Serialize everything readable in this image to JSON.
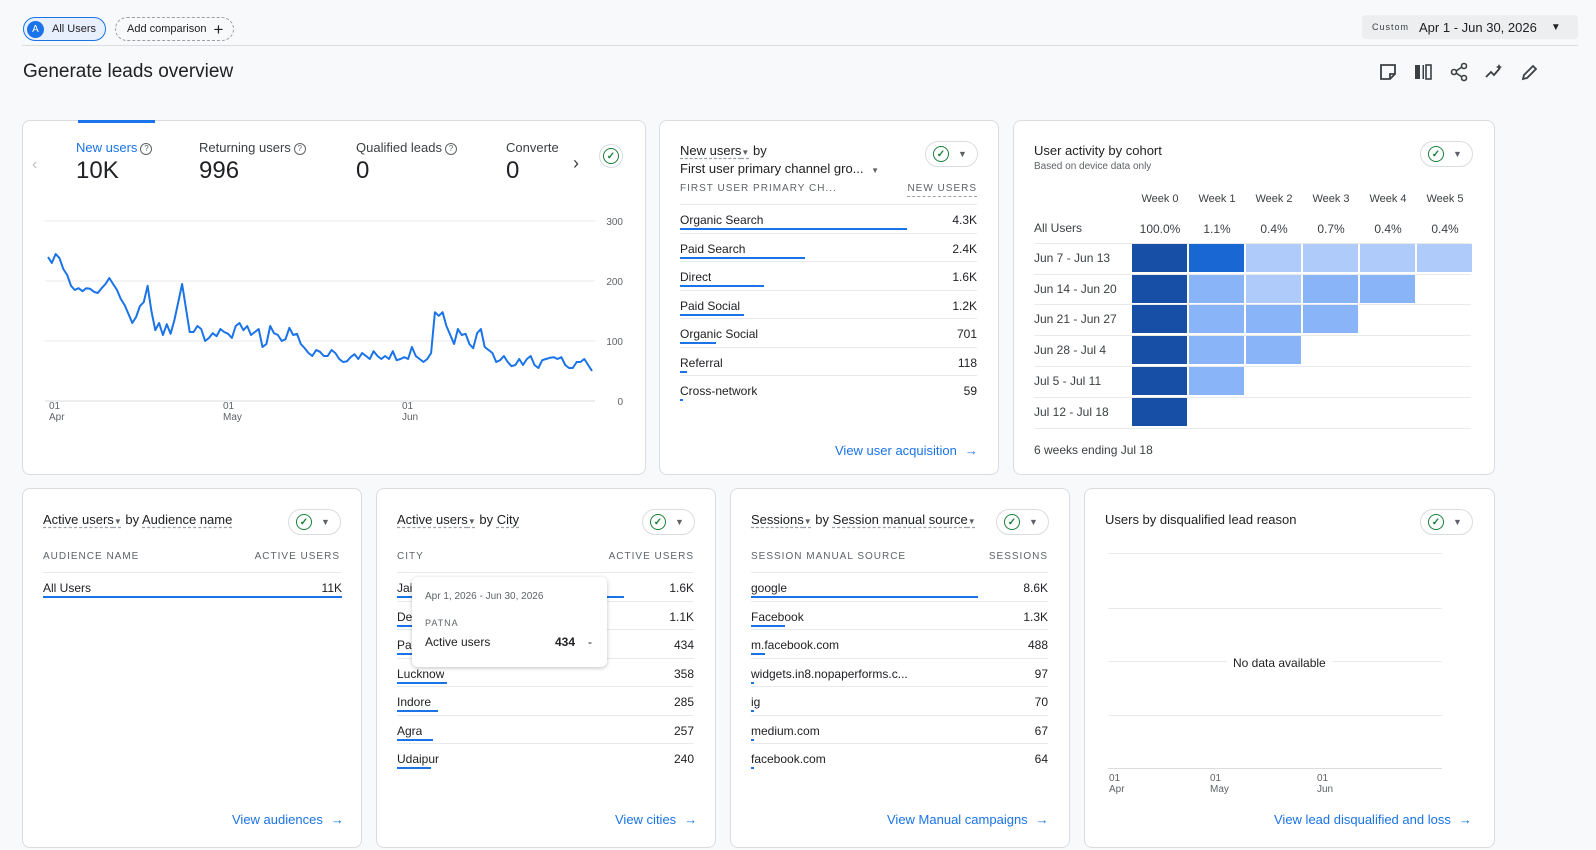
{
  "topbar": {
    "chip_users_avatar": "A",
    "chip_users_label": "All Users",
    "add_comparison_label": "Add comparison",
    "date_custom_label": "Custom",
    "date_range": "Apr 1 - Jun 30, 2026"
  },
  "page_title": "Generate leads overview",
  "toolbar_icons": [
    "customize-report-icon",
    "compare-icon",
    "share-icon",
    "insights-icon",
    "edit-icon"
  ],
  "kpis": [
    {
      "label": "New users",
      "value": "10K",
      "active": true
    },
    {
      "label": "Returning users",
      "value": "996",
      "active": false
    },
    {
      "label": "Qualified leads",
      "value": "0",
      "active": false
    },
    {
      "label": "Converte",
      "value": "0",
      "active": false
    }
  ],
  "line_chart": {
    "chart_data": {
      "type": "line",
      "x_labels": [
        [
          "01",
          "Apr"
        ],
        [
          "01",
          "May"
        ],
        [
          "01",
          "Jun"
        ]
      ],
      "y_ticks": [
        "300",
        "200",
        "100",
        "0"
      ],
      "ylim": [
        0,
        300
      ],
      "series": [
        {
          "values": [
            240,
            230,
            245,
            238,
            220,
            210,
            192,
            185,
            188,
            183,
            188,
            187,
            182,
            180,
            188,
            195,
            205,
            195,
            185,
            170,
            160,
            145,
            130,
            140,
            158,
            165,
            192,
            150,
            118,
            130,
            110,
            128,
            112,
            135,
            165,
            195,
            155,
            115,
            115,
            125,
            120,
            100,
            105,
            113,
            108,
            120,
            115,
            112,
            105,
            125,
            130,
            118,
            125,
            110,
            115,
            120,
            90,
            95,
            125,
            113,
            110,
            100,
            103,
            122,
            110,
            112,
            95,
            88,
            80,
            75,
            85,
            82,
            75,
            75,
            85,
            80,
            70,
            65,
            66,
            73,
            78,
            70,
            80,
            75,
            70,
            83,
            75,
            70,
            75,
            70,
            83,
            68,
            70,
            73,
            70,
            90,
            75,
            70,
            65,
            70,
            80,
            148,
            142,
            148,
            125,
            110,
            95,
            120,
            110,
            112,
            95,
            88,
            113,
            120,
            90,
            85,
            80,
            65,
            68,
            75,
            65,
            58,
            60,
            70,
            60,
            70,
            75,
            60,
            55,
            68,
            70,
            72,
            73,
            70,
            73,
            60,
            55,
            55,
            65,
            65,
            70,
            60,
            50
          ]
        }
      ],
      "grid": true,
      "legend": "none"
    }
  },
  "acquisition": {
    "title_metric": "New users",
    "title_by": "by",
    "title_dim": "First user primary channel gro...",
    "col_dim": "FIRST USER PRIMARY CH...",
    "col_metric": "NEW USERS",
    "rows": [
      {
        "name": "Organic Search",
        "value": "4.3K",
        "frac": 1.0
      },
      {
        "name": "Paid Search",
        "value": "2.4K",
        "frac": 0.55
      },
      {
        "name": "Direct",
        "value": "1.6K",
        "frac": 0.37
      },
      {
        "name": "Paid Social",
        "value": "1.2K",
        "frac": 0.28
      },
      {
        "name": "Organic Social",
        "value": "701",
        "frac": 0.16
      },
      {
        "name": "Referral",
        "value": "118",
        "frac": 0.03
      },
      {
        "name": "Cross-network",
        "value": "59",
        "frac": 0.015
      }
    ],
    "link": "View user acquisition"
  },
  "cohort": {
    "title": "User activity by cohort",
    "subtitle": "Based on device data only",
    "weeks": [
      "Week 0",
      "Week 1",
      "Week 2",
      "Week 3",
      "Week 4",
      "Week 5"
    ],
    "all_users_label": "All Users",
    "all_users_pcts": [
      "100.0%",
      "1.1%",
      "0.4%",
      "0.7%",
      "0.4%",
      "0.4%"
    ],
    "rows": [
      {
        "label": "Jun 7 - Jun 13",
        "levels": [
          5,
          4,
          1,
          1,
          1,
          1
        ]
      },
      {
        "label": "Jun 14 - Jun 20",
        "levels": [
          5,
          2,
          1,
          2,
          2
        ]
      },
      {
        "label": "Jun 21 - Jun 27",
        "levels": [
          5,
          2,
          2,
          2
        ]
      },
      {
        "label": "Jun 28 - Jul 4",
        "levels": [
          5,
          2,
          2
        ]
      },
      {
        "label": "Jul 5 - Jul 11",
        "levels": [
          5,
          2
        ]
      },
      {
        "label": "Jul 12 - Jul 18",
        "levels": [
          5
        ]
      }
    ],
    "footer": "6 weeks ending Jul 18",
    "colors": {
      "5": "#174ea6",
      "4": "#1967d2",
      "2": "#8ab4f8",
      "1": "#aecbfa"
    }
  },
  "audience": {
    "title_metric": "Active users",
    "title_by": "by",
    "title_dim": "Audience name",
    "col_dim": "AUDIENCE NAME",
    "col_metric": "ACTIVE USERS",
    "rows": [
      {
        "name": "All Users",
        "value": "11K",
        "frac": 1.0
      }
    ],
    "link": "View audiences"
  },
  "city": {
    "title_metric": "Active users",
    "title_by": "by",
    "title_dim": "City",
    "col_dim": "CITY",
    "col_metric": "ACTIVE USERS",
    "rows": [
      {
        "name": "Jaipur",
        "value": "1.6K",
        "frac": 1.0
      },
      {
        "name": "Delhi",
        "value": "1.1K",
        "frac": 0.69
      },
      {
        "name": "Patna",
        "value": "434",
        "frac": 0.27
      },
      {
        "name": "Lucknow",
        "value": "358",
        "frac": 0.22
      },
      {
        "name": "Indore",
        "value": "285",
        "frac": 0.18
      },
      {
        "name": "Agra",
        "value": "257",
        "frac": 0.16
      },
      {
        "name": "Udaipur",
        "value": "240",
        "frac": 0.15
      }
    ],
    "link": "View cities",
    "tooltip": {
      "date": "Apr 1, 2026 - Jun 30, 2026",
      "city": "PATNA",
      "metric": "Active users",
      "value": "434",
      "trend": "-"
    }
  },
  "sessions": {
    "title_metric": "Sessions",
    "title_by": "by",
    "title_dim": "Session manual source",
    "col_dim": "SESSION MANUAL SOURCE",
    "col_metric": "SESSIONS",
    "rows": [
      {
        "name": "google",
        "value": "8.6K",
        "frac": 1.0
      },
      {
        "name": "Facebook",
        "value": "1.3K",
        "frac": 0.15
      },
      {
        "name": "m.facebook.com",
        "value": "488",
        "frac": 0.06
      },
      {
        "name": "widgets.in8.nopaperforms.c...",
        "value": "97",
        "frac": 0.012
      },
      {
        "name": "ig",
        "value": "70",
        "frac": 0.008
      },
      {
        "name": "medium.com",
        "value": "67",
        "frac": 0.008
      },
      {
        "name": "facebook.com",
        "value": "64",
        "frac": 0.008
      }
    ],
    "link": "View Manual campaigns"
  },
  "disqualified": {
    "title": "Users by disqualified lead reason",
    "no_data": "No data available",
    "x_labels": [
      [
        "01",
        "Apr"
      ],
      [
        "01",
        "May"
      ],
      [
        "01",
        "Jun"
      ]
    ],
    "link": "View lead disqualified and loss"
  }
}
